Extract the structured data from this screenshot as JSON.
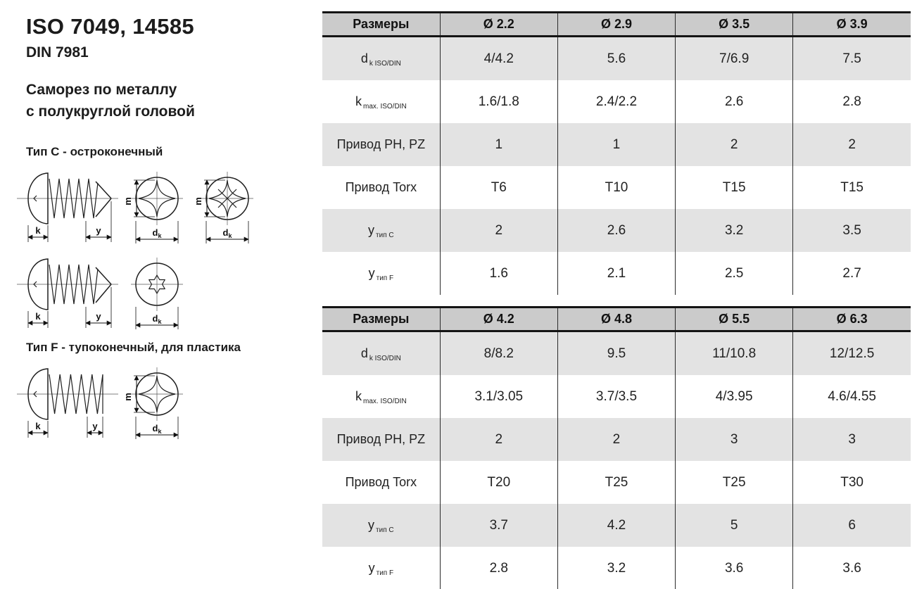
{
  "page": {
    "title": "ISO 7049, 14585",
    "subtitle": "DIN 7981",
    "description_line1": "Саморез по металлу",
    "description_line2": "с полукруглой головой",
    "type_c_label": "Тип C - остроконечный",
    "type_f_label": "Тип F - тупоконечный, для пластика"
  },
  "drawings": {
    "dim_k": "k",
    "dim_y": "y",
    "dim_m": "m",
    "dim_dk": "d",
    "dim_dk_sub": "k"
  },
  "tables": [
    {
      "header": [
        "Размеры",
        "Ø 2.2",
        "Ø 2.9",
        "Ø 3.5",
        "Ø 3.9"
      ],
      "rows": [
        {
          "label_main": "d",
          "label_sub": "k ISO/DIN",
          "values": [
            "4/4.2",
            "5.6",
            "7/6.9",
            "7.5"
          ],
          "shaded": true
        },
        {
          "label_main": "k",
          "label_sub": "max. ISO/DIN",
          "values": [
            "1.6/1.8",
            "2.4/2.2",
            "2.6",
            "2.8"
          ],
          "shaded": false
        },
        {
          "label_main": "Привод PH, PZ",
          "label_sub": "",
          "values": [
            "1",
            "1",
            "2",
            "2"
          ],
          "shaded": true
        },
        {
          "label_main": "Привод Torx",
          "label_sub": "",
          "values": [
            "T6",
            "T10",
            "T15",
            "T15"
          ],
          "shaded": false
        },
        {
          "label_main": "у",
          "label_sub": "тип C",
          "values": [
            "2",
            "2.6",
            "3.2",
            "3.5"
          ],
          "shaded": true
        },
        {
          "label_main": "у",
          "label_sub": "тип F",
          "values": [
            "1.6",
            "2.1",
            "2.5",
            "2.7"
          ],
          "shaded": false
        }
      ]
    },
    {
      "header": [
        "Размеры",
        "Ø 4.2",
        "Ø 4.8",
        "Ø 5.5",
        "Ø 6.3"
      ],
      "rows": [
        {
          "label_main": "d",
          "label_sub": "k ISO/DIN",
          "values": [
            "8/8.2",
            "9.5",
            "11/10.8",
            "12/12.5"
          ],
          "shaded": true
        },
        {
          "label_main": "k",
          "label_sub": "max. ISO/DIN",
          "values": [
            "3.1/3.05",
            "3.7/3.5",
            "4/3.95",
            "4.6/4.55"
          ],
          "shaded": false
        },
        {
          "label_main": "Привод PH, PZ",
          "label_sub": "",
          "values": [
            "2",
            "2",
            "3",
            "3"
          ],
          "shaded": true
        },
        {
          "label_main": "Привод Torx",
          "label_sub": "",
          "values": [
            "T20",
            "T25",
            "T25",
            "T30"
          ],
          "shaded": false
        },
        {
          "label_main": "у",
          "label_sub": "тип C",
          "values": [
            "3.7",
            "4.2",
            "5",
            "6"
          ],
          "shaded": true
        },
        {
          "label_main": "у",
          "label_sub": "тип F",
          "values": [
            "2.8",
            "3.2",
            "3.6",
            "3.6"
          ],
          "shaded": false
        }
      ]
    }
  ],
  "colors": {
    "header_bg": "#cbcbcb",
    "shaded_row_bg": "#e3e3e3",
    "border_dark": "#141414"
  }
}
